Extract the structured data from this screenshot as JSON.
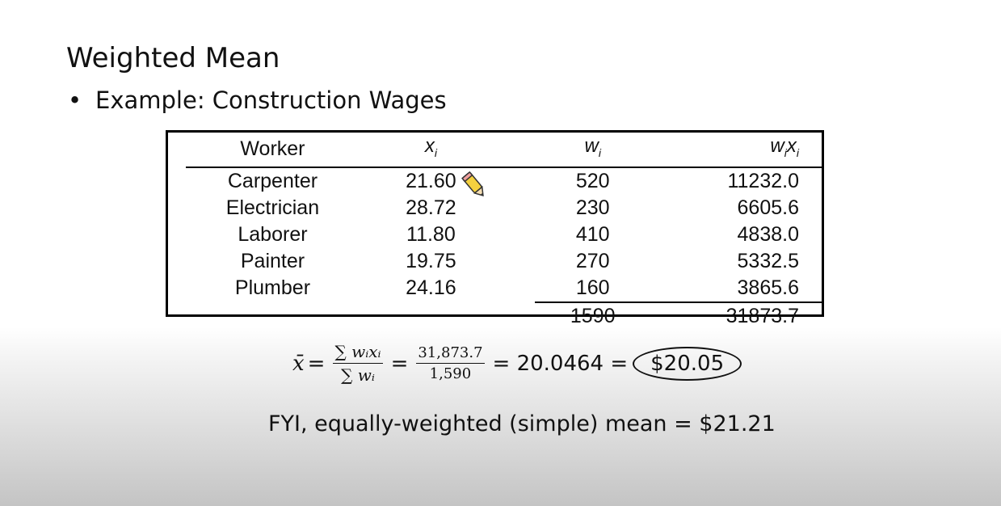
{
  "slide": {
    "title": "Weighted Mean",
    "bullet": "Example:  Construction Wages"
  },
  "table": {
    "headers": {
      "worker": "Worker",
      "x": "x",
      "x_sub": "i",
      "w": "w",
      "w_sub": "i",
      "wx_w": "w",
      "wx_w_sub": "i",
      "wx_x": "x",
      "wx_x_sub": "i"
    },
    "rows": [
      {
        "worker": "Carpenter",
        "x": "21.60",
        "w": "520",
        "wx": "11232.0"
      },
      {
        "worker": "Electrician",
        "x": "28.72",
        "w": "230",
        "wx": "6605.6"
      },
      {
        "worker": "Laborer",
        "x": "11.80",
        "w": "410",
        "wx": "4838.0"
      },
      {
        "worker": "Painter",
        "x": "19.75",
        "w": "270",
        "wx": "5332.5"
      },
      {
        "worker": "Plumber",
        "x": "24.16",
        "w": "160",
        "wx": "3865.6"
      }
    ],
    "totals": {
      "w": "1590",
      "wx": "31873.7"
    }
  },
  "formula": {
    "xbar": "x̄",
    "eq1": "=",
    "frac1_num": "∑ wᵢxᵢ",
    "frac1_den": "∑ wᵢ",
    "eq2": "=",
    "frac2_num": "31,873.7",
    "frac2_den": "1,590",
    "eq3": "= 20.0464 =",
    "result": "$20.05"
  },
  "footnote": "FYI, equally-weighted (simple) mean = $21.21",
  "icons": {
    "cursor": "pencil-icon"
  }
}
